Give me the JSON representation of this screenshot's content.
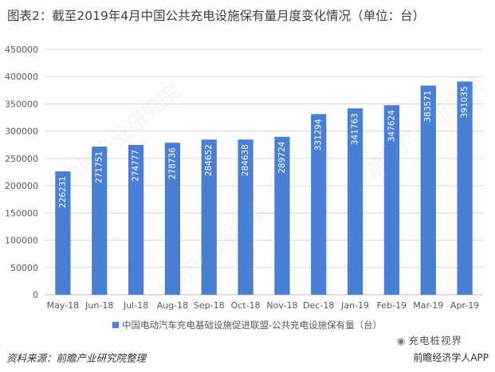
{
  "title": "图表2：截至2019年4月中国公共充电设施保有量月度变化情况（单位：台）",
  "source": "资料来源：前瞻产业研究院整理",
  "brand": "前瞻经济学人APP",
  "watermark": "前瞻产业研究院",
  "wechat_watermark": "充电桩视界",
  "colors": {
    "bar": "#4a7fd6",
    "text": "#595959",
    "grid": "#d9d9d9"
  },
  "chart_data": {
    "type": "bar",
    "title": "",
    "xlabel": "",
    "ylabel": "",
    "ylim": [
      0,
      450000
    ],
    "yticks": [
      0,
      50000,
      100000,
      150000,
      200000,
      250000,
      300000,
      350000,
      400000,
      450000
    ],
    "grid": true,
    "legend_position": "bottom",
    "categories": [
      "May-18",
      "Jun-18",
      "Jul-18",
      "Aug-18",
      "Sep-18",
      "Oct-18",
      "Nov-18",
      "Dec-18",
      "Jan-19",
      "Feb-19",
      "Mar-19",
      "Apr-19"
    ],
    "series": [
      {
        "name": "中国电动汽车充电基础设施促进联盟-公共充电设施保有量（台）",
        "values": [
          226231,
          271751,
          274777,
          278736,
          284652,
          284638,
          289724,
          331294,
          341763,
          347624,
          383571,
          391035
        ]
      }
    ],
    "data_labels": true
  }
}
